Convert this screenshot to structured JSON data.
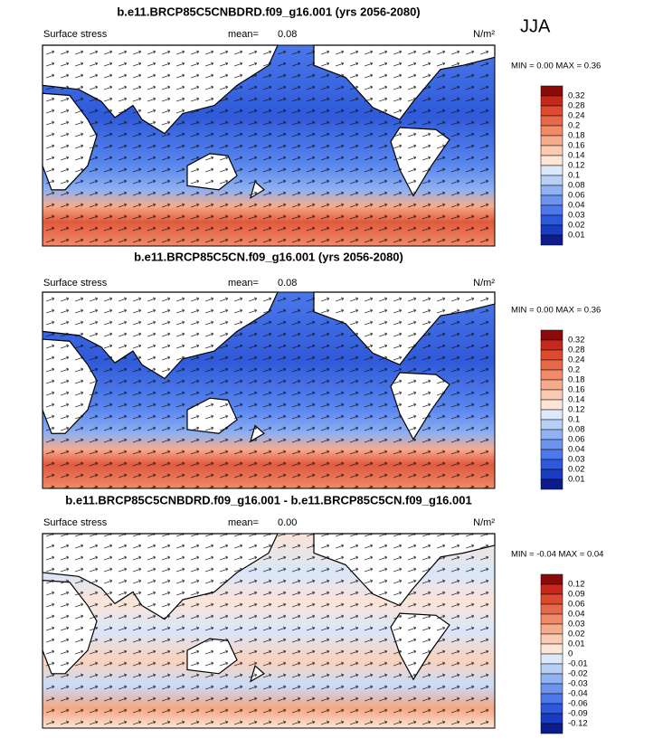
{
  "season": "JJA",
  "panels": [
    {
      "title": "b.e11.BRCP85C5CNBDRD.f09_g16.001 (yrs 2056-2080)",
      "variable": "Surface stress",
      "mean_label": "mean=",
      "mean": "0.08",
      "units": "N/m²",
      "minmax": "MIN =  0.00 MAX =  0.36",
      "colorbar_labels": [
        "0.32",
        "0.28",
        "0.24",
        "0.2",
        "0.18",
        "0.16",
        "0.14",
        "0.12",
        "0.1",
        "0.08",
        "0.06",
        "0.04",
        "0.03",
        "0.02",
        "0.01"
      ],
      "colorbar_colors": [
        "#8b0a0a",
        "#c8281a",
        "#dc4a30",
        "#e8694a",
        "#f08a68",
        "#f6ab8c",
        "#fbcab2",
        "#fde6d8",
        "#dce9fa",
        "#b8d0f6",
        "#90b2f2",
        "#6c94ee",
        "#4c78ea",
        "#2e58dc",
        "#1a3cc0",
        "#0c1c8c"
      ]
    },
    {
      "title": "b.e11.BRCP85C5CN.f09_g16.001 (yrs 2056-2080)",
      "variable": "Surface stress",
      "mean_label": "mean=",
      "mean": "0.08",
      "units": "N/m²",
      "minmax": "MIN =  0.00 MAX =  0.36",
      "colorbar_labels": [
        "0.32",
        "0.28",
        "0.24",
        "0.2",
        "0.18",
        "0.16",
        "0.14",
        "0.12",
        "0.1",
        "0.08",
        "0.06",
        "0.04",
        "0.03",
        "0.02",
        "0.01"
      ],
      "colorbar_colors": [
        "#8b0a0a",
        "#c8281a",
        "#dc4a30",
        "#e8694a",
        "#f08a68",
        "#f6ab8c",
        "#fbcab2",
        "#fde6d8",
        "#dce9fa",
        "#b8d0f6",
        "#90b2f2",
        "#6c94ee",
        "#4c78ea",
        "#2e58dc",
        "#1a3cc0",
        "#0c1c8c"
      ]
    },
    {
      "title": "b.e11.BRCP85C5CNBDRD.f09_g16.001 - b.e11.BRCP85C5CN.f09_g16.001",
      "variable": "Surface stress",
      "mean_label": "mean=",
      "mean": "0.00",
      "units": "N/m²",
      "minmax": "MIN = -0.04 MAX =  0.04",
      "colorbar_labels": [
        "0.12",
        "0.09",
        "0.06",
        "0.04",
        "0.03",
        "0.02",
        "0.01",
        "0",
        "-0.01",
        "-0.02",
        "-0.03",
        "-0.04",
        "-0.06",
        "-0.09",
        "-0.12"
      ],
      "colorbar_colors": [
        "#8b0a0a",
        "#c8281a",
        "#dc4a30",
        "#e8694a",
        "#f08a68",
        "#f6ab8c",
        "#fbcab2",
        "#fde6d8",
        "#dce9fa",
        "#b8d0f6",
        "#90b2f2",
        "#6c94ee",
        "#4c78ea",
        "#2e58dc",
        "#1a3cc0",
        "#0c1c8c"
      ]
    }
  ]
}
